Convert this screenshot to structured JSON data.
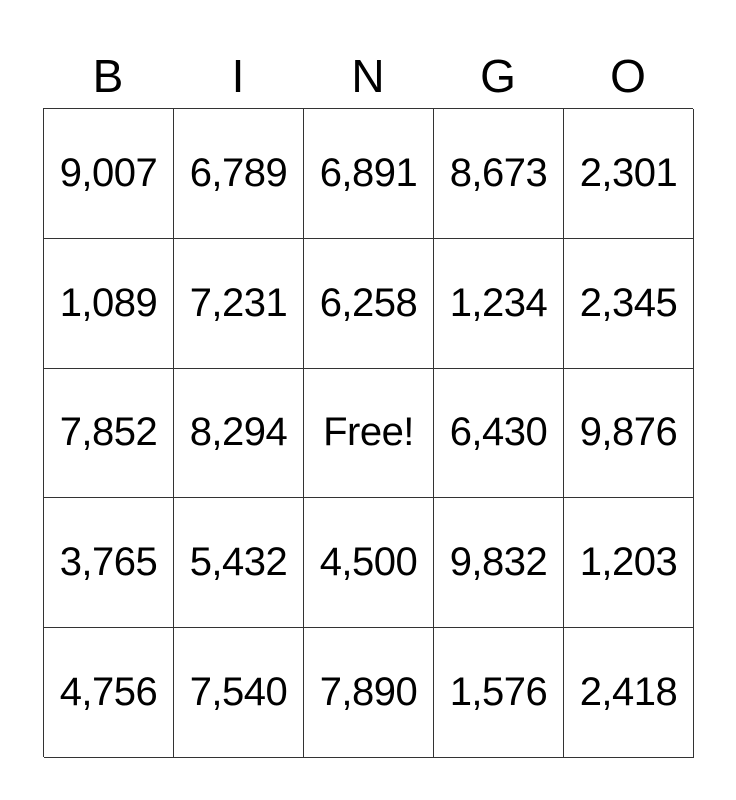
{
  "header": [
    "B",
    "I",
    "N",
    "G",
    "O"
  ],
  "rows": [
    [
      "9,007",
      "6,789",
      "6,891",
      "8,673",
      "2,301"
    ],
    [
      "1,089",
      "7,231",
      "6,258",
      "1,234",
      "2,345"
    ],
    [
      "7,852",
      "8,294",
      "Free!",
      "6,430",
      "9,876"
    ],
    [
      "3,765",
      "5,432",
      "4,500",
      "9,832",
      "1,203"
    ],
    [
      "4,756",
      "7,540",
      "7,890",
      "1,576",
      "2,418"
    ]
  ]
}
